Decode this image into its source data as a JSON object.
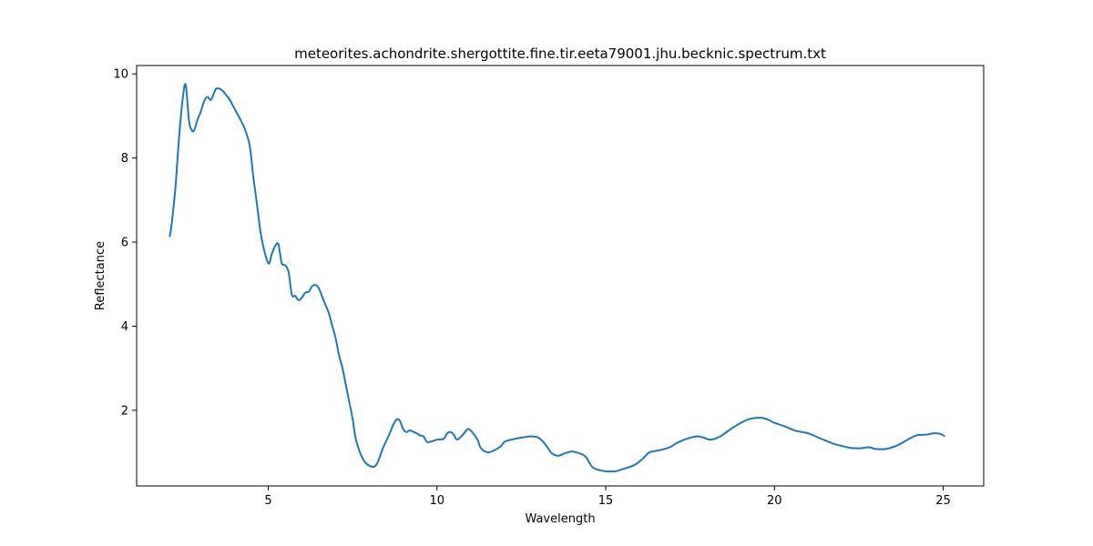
{
  "chart_data": {
    "type": "line",
    "title": "meteorites.achondrite.shergottite.fine.tir.eeta79001.jhu.becknic.spectrum.txt",
    "xlabel": "Wavelength",
    "ylabel": "Reflectance",
    "xlim": [
      1.1,
      26.2
    ],
    "ylim": [
      0.2,
      10.2
    ],
    "xticks": [
      5,
      10,
      15,
      20,
      25
    ],
    "xtick_labels": [
      "5",
      "10",
      "15",
      "20",
      "25"
    ],
    "yticks": [
      2,
      4,
      6,
      8,
      10
    ],
    "ytick_labels": [
      "2",
      "4",
      "6",
      "8",
      "10"
    ],
    "grid": false,
    "line_color": "#1f77b4",
    "series": [
      {
        "x": [
          2.08,
          2.15,
          2.25,
          2.35,
          2.45,
          2.55,
          2.65,
          2.72,
          2.8,
          2.9,
          3.0,
          3.1,
          3.2,
          3.3,
          3.38,
          3.42,
          3.46,
          3.55,
          3.65,
          3.75,
          3.85,
          3.95,
          4.05,
          4.15,
          4.3,
          4.45,
          4.55,
          4.65,
          4.8,
          5.0,
          5.1,
          5.2,
          5.3,
          5.4,
          5.5,
          5.6,
          5.7,
          5.8,
          5.9,
          6.0,
          6.1,
          6.2,
          6.3,
          6.4,
          6.5,
          6.6,
          6.7,
          6.8,
          6.9,
          7.0,
          7.1,
          7.2,
          7.3,
          7.4,
          7.5,
          7.6,
          7.8,
          8.0,
          8.2,
          8.4,
          8.6,
          8.7,
          8.8,
          8.9,
          9.0,
          9.1,
          9.2,
          9.4,
          9.5,
          9.6,
          9.7,
          9.8,
          10.0,
          10.2,
          10.3,
          10.4,
          10.5,
          10.6,
          10.8,
          10.9,
          11.0,
          11.2,
          11.3,
          11.5,
          11.7,
          11.9,
          12.0,
          12.2,
          12.5,
          12.8,
          13.0,
          13.2,
          13.4,
          13.6,
          13.8,
          14.0,
          14.2,
          14.4,
          14.6,
          14.8,
          15.0,
          15.3,
          15.5,
          15.7,
          15.9,
          16.1,
          16.3,
          16.6,
          16.9,
          17.1,
          17.4,
          17.7,
          17.9,
          18.1,
          18.4,
          18.7,
          19.0,
          19.3,
          19.6,
          19.8,
          20.0,
          20.3,
          20.6,
          21.0,
          21.3,
          21.7,
          22.0,
          22.3,
          22.6,
          22.8,
          23.0,
          23.3,
          23.6,
          23.9,
          24.2,
          24.5,
          24.7,
          24.9,
          25.05
        ],
        "y": [
          6.12,
          6.5,
          7.3,
          8.4,
          9.3,
          9.75,
          8.9,
          8.68,
          8.65,
          8.9,
          9.1,
          9.35,
          9.45,
          9.38,
          9.52,
          9.6,
          9.65,
          9.65,
          9.6,
          9.5,
          9.4,
          9.25,
          9.1,
          8.95,
          8.7,
          8.3,
          7.6,
          7.0,
          6.1,
          5.5,
          5.7,
          5.9,
          5.95,
          5.5,
          5.45,
          5.3,
          4.75,
          4.72,
          4.62,
          4.68,
          4.8,
          4.82,
          4.95,
          4.98,
          4.9,
          4.7,
          4.5,
          4.3,
          4.0,
          3.7,
          3.3,
          3.0,
          2.6,
          2.2,
          1.8,
          1.3,
          0.85,
          0.68,
          0.7,
          1.1,
          1.45,
          1.65,
          1.78,
          1.75,
          1.55,
          1.48,
          1.52,
          1.45,
          1.4,
          1.38,
          1.25,
          1.25,
          1.3,
          1.32,
          1.45,
          1.48,
          1.42,
          1.3,
          1.45,
          1.55,
          1.52,
          1.3,
          1.1,
          1.0,
          1.05,
          1.15,
          1.25,
          1.3,
          1.35,
          1.38,
          1.35,
          1.2,
          0.98,
          0.92,
          0.98,
          1.02,
          0.98,
          0.9,
          0.65,
          0.58,
          0.55,
          0.55,
          0.6,
          0.65,
          0.72,
          0.85,
          1.0,
          1.05,
          1.12,
          1.22,
          1.32,
          1.38,
          1.35,
          1.3,
          1.38,
          1.55,
          1.7,
          1.8,
          1.82,
          1.78,
          1.7,
          1.62,
          1.52,
          1.45,
          1.35,
          1.22,
          1.15,
          1.1,
          1.1,
          1.12,
          1.08,
          1.08,
          1.15,
          1.28,
          1.4,
          1.42,
          1.45,
          1.44,
          1.38
        ]
      }
    ]
  }
}
